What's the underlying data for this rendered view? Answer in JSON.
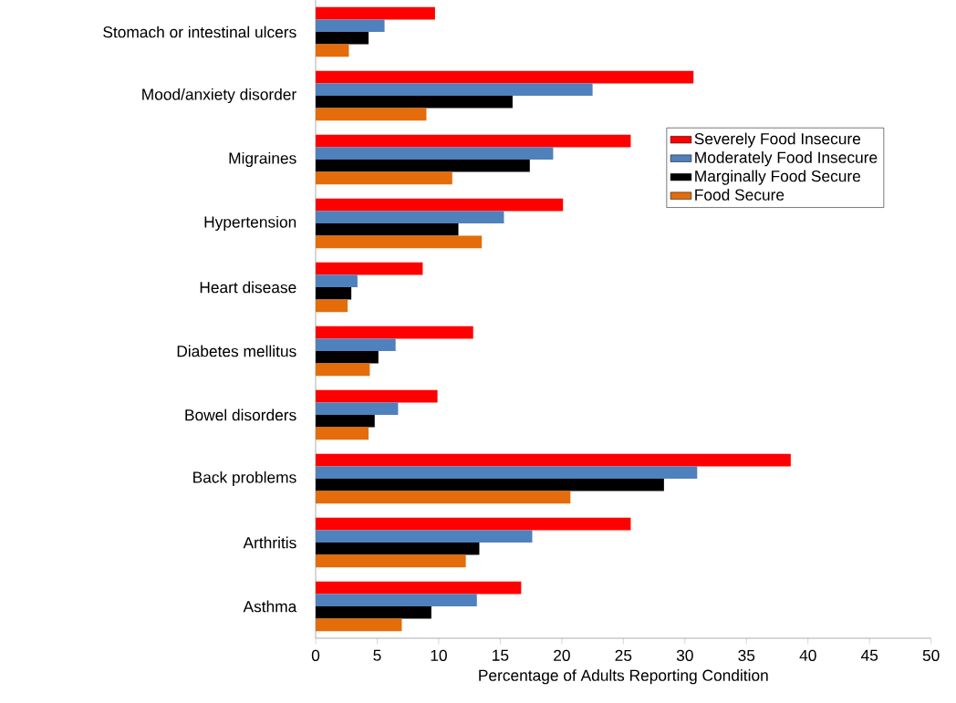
{
  "chart_data": {
    "type": "bar",
    "orientation": "horizontal",
    "xlabel": "Percentage of Adults Reporting Condition",
    "categories": [
      "Stomach or intestinal ulcers",
      "Mood/anxiety disorder",
      "Migraines",
      "Hypertension",
      "Heart disease",
      "Diabetes mellitus",
      "Bowel disorders",
      "Back problems",
      "Arthritis",
      "Asthma"
    ],
    "series": [
      {
        "name": "Severely Food Insecure",
        "color": "#ff0000",
        "values": [
          9.7,
          30.7,
          25.6,
          20.1,
          8.7,
          12.8,
          9.9,
          38.6,
          25.6,
          16.7
        ]
      },
      {
        "name": "Moderately Food Insecure",
        "color": "#4f81bd",
        "values": [
          5.6,
          22.5,
          19.3,
          15.3,
          3.4,
          6.5,
          6.7,
          31.0,
          17.6,
          13.1
        ]
      },
      {
        "name": "Marginally Food Secure",
        "color": "#000000",
        "values": [
          4.3,
          16.0,
          17.4,
          11.6,
          2.9,
          5.1,
          4.8,
          28.3,
          13.3,
          9.4
        ]
      },
      {
        "name": "Food Secure",
        "color": "#e46c0a",
        "values": [
          2.7,
          9.0,
          11.1,
          13.5,
          2.6,
          4.4,
          4.3,
          20.7,
          12.2,
          7.0
        ]
      }
    ],
    "xlim": [
      0,
      50
    ],
    "xticks": [
      0,
      5,
      10,
      15,
      20,
      25,
      30,
      35,
      40,
      45,
      50
    ],
    "legend": "right",
    "grid": false
  }
}
